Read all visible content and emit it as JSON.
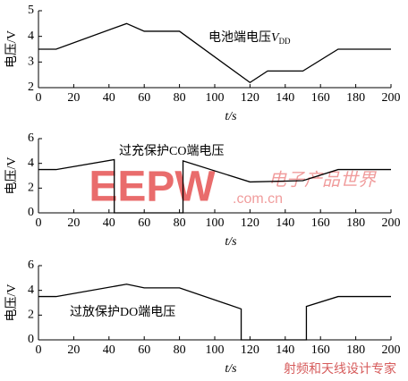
{
  "chart_data": [
    {
      "type": "line",
      "ylabel": "电压/V",
      "xlabel": "t/s",
      "annotation": "电池端电压",
      "annotation_var": "V",
      "annotation_sub": "DD",
      "x": [
        0,
        10,
        50,
        60,
        80,
        120,
        130,
        150,
        170,
        200
      ],
      "values": [
        3.5,
        3.5,
        4.5,
        4.2,
        4.2,
        2.2,
        2.65,
        2.65,
        3.5,
        3.5
      ],
      "color": "#000000",
      "xlim": [
        0,
        200
      ],
      "xticks": [
        0,
        20,
        40,
        60,
        80,
        100,
        120,
        140,
        160,
        180,
        200
      ],
      "ylim": [
        2,
        5
      ],
      "yticks": [
        2,
        3,
        4,
        5
      ]
    },
    {
      "type": "line",
      "ylabel": "电压/V",
      "xlabel": "t/s",
      "annotation": "过充保护CO端电压",
      "x": [
        0,
        10,
        43,
        43,
        82,
        82,
        120,
        150,
        170,
        200
      ],
      "values": [
        3.5,
        3.5,
        4.3,
        0,
        0,
        4.2,
        2.5,
        2.6,
        3.5,
        3.5
      ],
      "color": "#000000",
      "xlim": [
        0,
        200
      ],
      "xticks": [
        0,
        20,
        40,
        60,
        80,
        100,
        120,
        140,
        160,
        180,
        200
      ],
      "ylim": [
        0,
        6
      ],
      "yticks": [
        0,
        2,
        4,
        6
      ]
    },
    {
      "type": "line",
      "ylabel": "电压/V",
      "xlabel": "t/s",
      "annotation": "过放保护DO端电压",
      "x": [
        0,
        10,
        50,
        60,
        80,
        115,
        115,
        152,
        152,
        170,
        200
      ],
      "values": [
        3.5,
        3.5,
        4.5,
        4.2,
        4.2,
        2.5,
        0,
        0,
        2.7,
        3.5,
        3.5
      ],
      "color": "#000000",
      "xlim": [
        0,
        200
      ],
      "xticks": [
        0,
        20,
        40,
        60,
        80,
        100,
        120,
        140,
        160,
        180,
        200
      ],
      "ylim": [
        0,
        6
      ],
      "yticks": [
        0,
        2,
        4,
        6
      ]
    }
  ],
  "watermarks": {
    "brand": "EEPW",
    "cn": "电子产品世界",
    "url": ".com.cn",
    "footer": "射频和天线设计专家"
  }
}
